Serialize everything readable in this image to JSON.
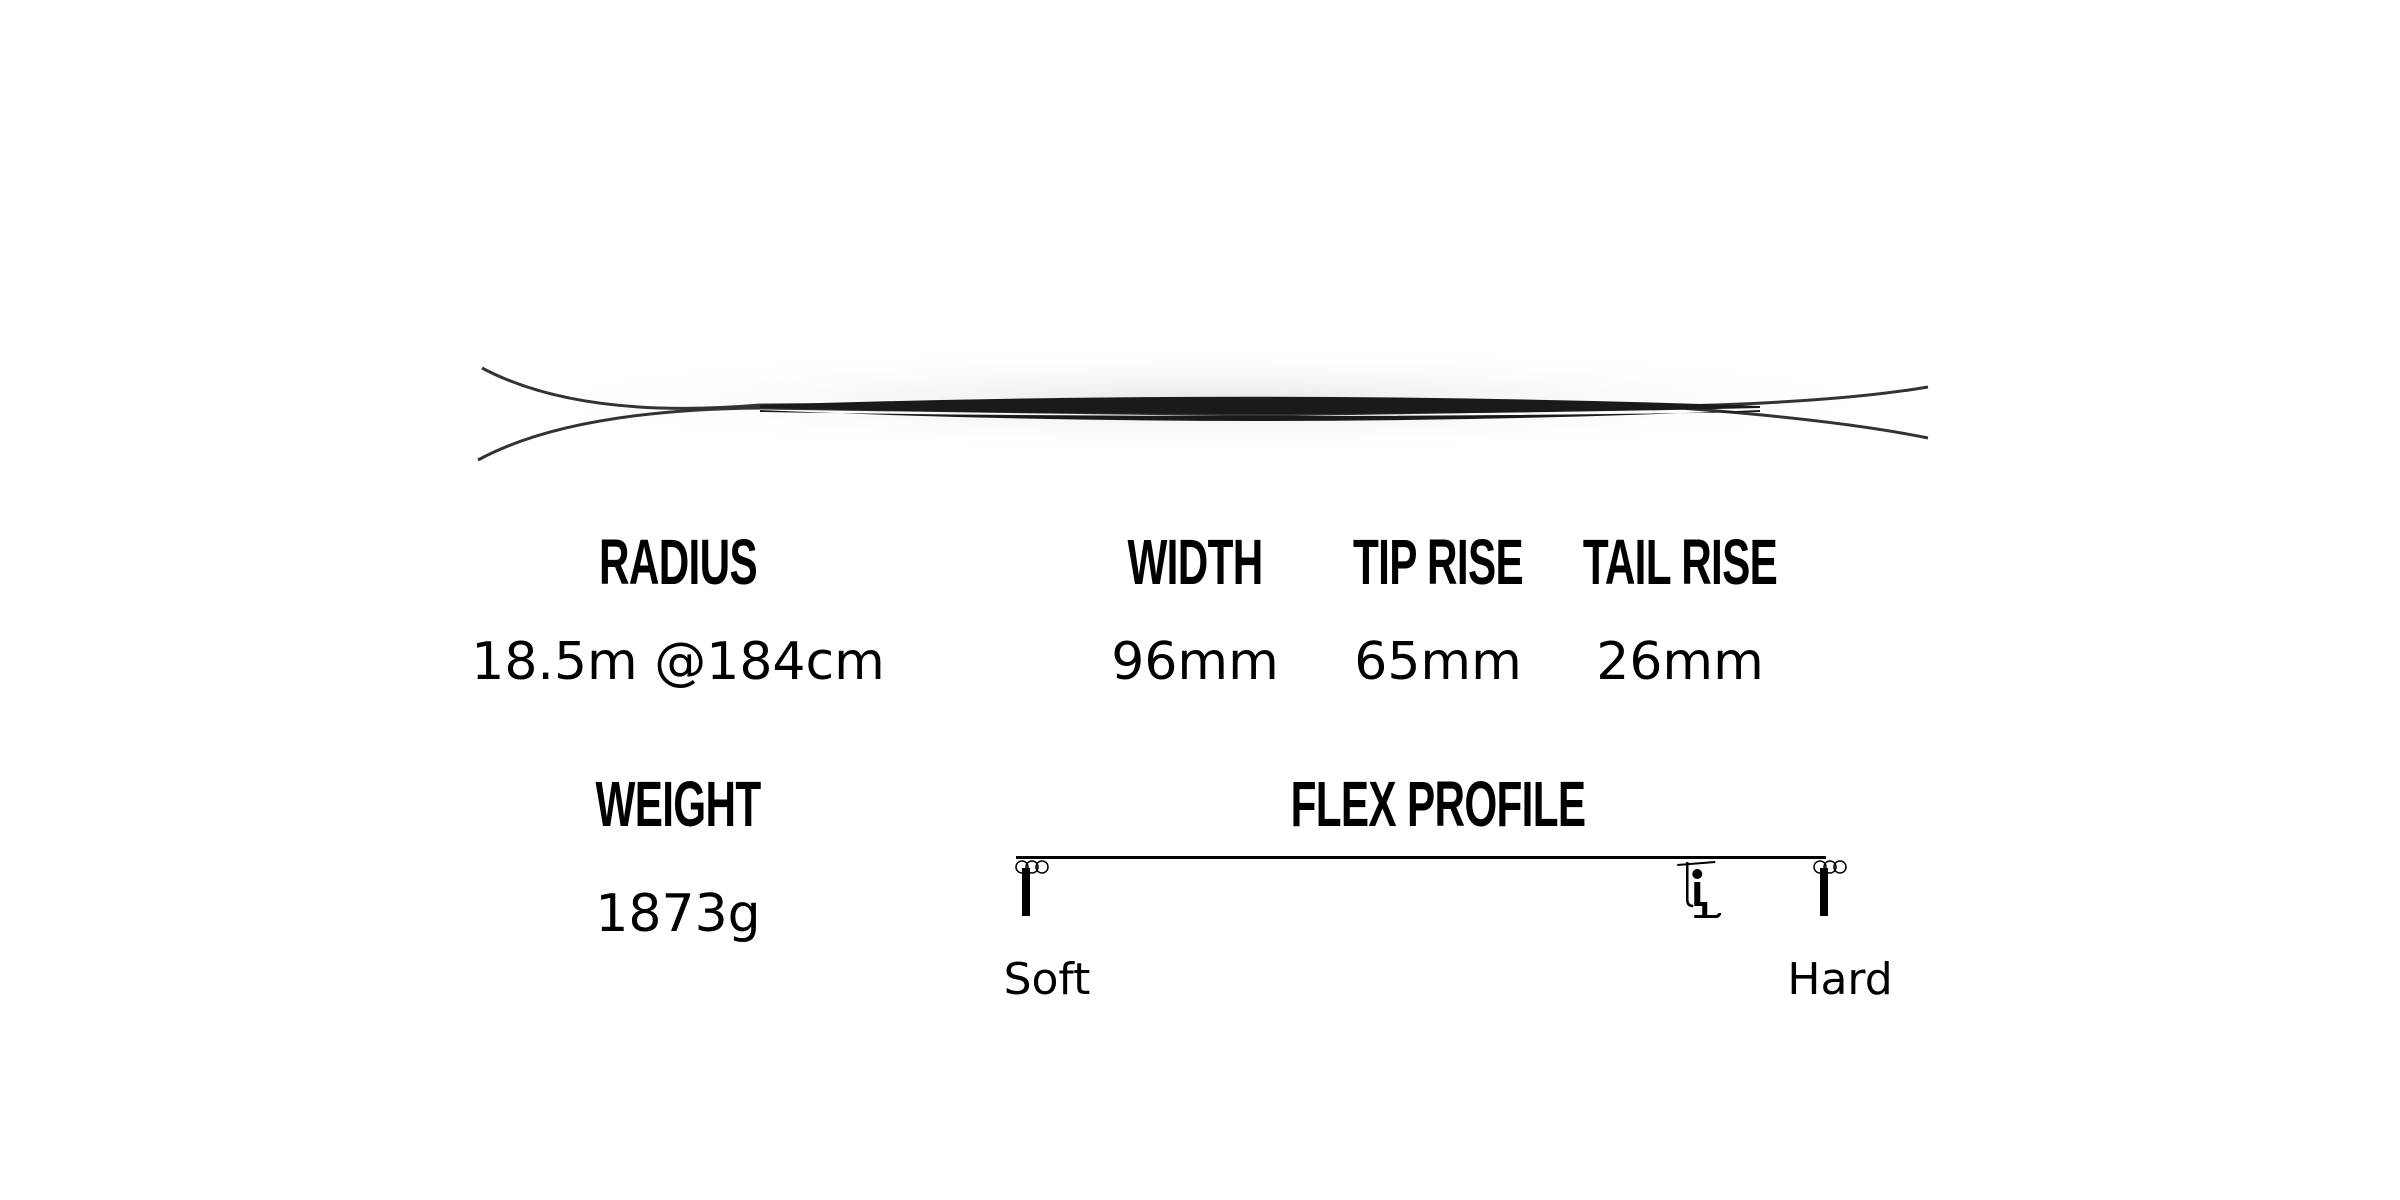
{
  "specs": {
    "radius": {
      "label": "RADIUS",
      "value": "18.5m @184cm"
    },
    "width": {
      "label": "WIDTH",
      "value": "96mm"
    },
    "tip_rise": {
      "label": "TIP RISE",
      "value": "65mm"
    },
    "tail_rise": {
      "label": "TAIL RISE",
      "value": "26mm"
    },
    "weight": {
      "label": "WEIGHT",
      "value": "1873g"
    }
  },
  "flex_profile": {
    "label": "FLEX PROFILE",
    "min_label": "Soft",
    "max_label": "Hard",
    "level": 0.82,
    "marker_icon": "chairlift-icon"
  },
  "colors": {
    "text": "#000000",
    "ski": "#1a1a1a",
    "background": "#ffffff"
  }
}
